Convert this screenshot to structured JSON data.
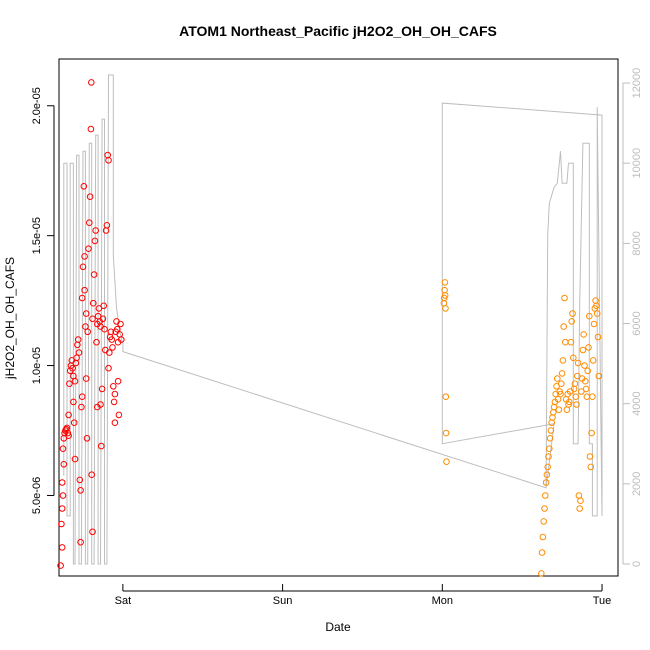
{
  "chart_data": {
    "type": "scatter",
    "title": "ATOM1 Northeast_Pacific jH2O2_OH_OH_CAFS",
    "xlabel": "Date",
    "ylabel": "jH2O2_OH_OH_CAFS",
    "x_ticks": [
      "Sat",
      "Sun",
      "Mon",
      "Tue"
    ],
    "x_range_days": [
      -0.4,
      3.1
    ],
    "y_ticks": [
      "5.0e-06",
      "1.0e-05",
      "1.5e-05",
      "2.0e-05"
    ],
    "y_tick_values": [
      5e-06,
      1e-05,
      1.5e-05,
      2e-05
    ],
    "ylim": [
      1.9e-06,
      2.18e-05
    ],
    "y2_ticks": [
      "0",
      "2000",
      "4000",
      "6000",
      "8000",
      "10000",
      "12000"
    ],
    "y2_tick_values": [
      0,
      2000,
      4000,
      6000,
      8000,
      10000,
      12000
    ],
    "y2lim": [
      -300,
      12600
    ],
    "colors": {
      "series_1": "#ff0000",
      "series_2": "#ff8c00",
      "altitude_line": "#bebebe"
    },
    "series": [
      {
        "axis": "left",
        "color": "#ff0000",
        "points": [
          [
            -0.39,
            2.3e-06
          ],
          [
            -0.38,
            3e-06
          ],
          [
            -0.385,
            3.9e-06
          ],
          [
            -0.38,
            4.5e-06
          ],
          [
            -0.375,
            5e-06
          ],
          [
            -0.38,
            5.5e-06
          ],
          [
            -0.37,
            6.2e-06
          ],
          [
            -0.375,
            6.8e-06
          ],
          [
            -0.37,
            7.2e-06
          ],
          [
            -0.365,
            7.4e-06
          ],
          [
            -0.36,
            7.5e-06
          ],
          [
            -0.355,
            7.55e-06
          ],
          [
            -0.35,
            7.6e-06
          ],
          [
            -0.345,
            7.4e-06
          ],
          [
            -0.34,
            7.3e-06
          ],
          [
            -0.34,
            8.1e-06
          ],
          [
            -0.335,
            9.3e-06
          ],
          [
            -0.33,
            9.8e-06
          ],
          [
            -0.325,
            1e-05
          ],
          [
            -0.32,
            1.02e-05
          ],
          [
            -0.315,
            9.9e-06
          ],
          [
            -0.31,
            9.6e-06
          ],
          [
            -0.31,
            8.6e-06
          ],
          [
            -0.305,
            7.8e-06
          ],
          [
            -0.3,
            6.4e-06
          ],
          [
            -0.3,
            9.4e-06
          ],
          [
            -0.295,
            1.01e-05
          ],
          [
            -0.29,
            1.03e-05
          ],
          [
            -0.285,
            1.08e-05
          ],
          [
            -0.28,
            1.1e-05
          ],
          [
            -0.275,
            1.05e-05
          ],
          [
            -0.27,
            5.6e-06
          ],
          [
            -0.265,
            3.2e-06
          ],
          [
            -0.265,
            5.2e-06
          ],
          [
            -0.26,
            8.4e-06
          ],
          [
            -0.255,
            8.8e-06
          ],
          [
            -0.255,
            1.26e-05
          ],
          [
            -0.25,
            1.38e-05
          ],
          [
            -0.245,
            1.69e-05
          ],
          [
            -0.24,
            1.42e-05
          ],
          [
            -0.24,
            1.29e-05
          ],
          [
            -0.235,
            1.15e-05
          ],
          [
            -0.23,
            1.2e-05
          ],
          [
            -0.23,
            9.5e-06
          ],
          [
            -0.225,
            7.2e-06
          ],
          [
            -0.22,
            1.13e-05
          ],
          [
            -0.215,
            1.45e-05
          ],
          [
            -0.21,
            1.55e-05
          ],
          [
            -0.205,
            1.65e-05
          ],
          [
            -0.2,
            1.91e-05
          ],
          [
            -0.198,
            2.09e-05
          ],
          [
            -0.195,
            5.8e-06
          ],
          [
            -0.19,
            3.6e-06
          ],
          [
            -0.19,
            1.18e-05
          ],
          [
            -0.185,
            1.24e-05
          ],
          [
            -0.18,
            1.35e-05
          ],
          [
            -0.175,
            1.48e-05
          ],
          [
            -0.17,
            1.52e-05
          ],
          [
            -0.165,
            1.09e-05
          ],
          [
            -0.16,
            8.4e-06
          ],
          [
            -0.16,
            1.16e-05
          ],
          [
            -0.155,
            1.19e-05
          ],
          [
            -0.15,
            1.22e-05
          ],
          [
            -0.145,
            1.17e-05
          ],
          [
            -0.14,
            1.15e-05
          ],
          [
            -0.14,
            8.5e-06
          ],
          [
            -0.135,
            6.9e-06
          ],
          [
            -0.13,
            9.1e-06
          ],
          [
            -0.125,
            1.18e-05
          ],
          [
            -0.12,
            1.23e-05
          ],
          [
            -0.115,
            1.14e-05
          ],
          [
            -0.11,
            1.06e-05
          ],
          [
            -0.105,
            1.52e-05
          ],
          [
            -0.1,
            1.54e-05
          ],
          [
            -0.095,
            1.81e-05
          ],
          [
            -0.09,
            1.79e-05
          ],
          [
            -0.09,
            9.9e-06
          ],
          [
            -0.085,
            1.05e-05
          ],
          [
            -0.08,
            1.11e-05
          ],
          [
            -0.075,
            1.13e-05
          ],
          [
            -0.07,
            1.1e-05
          ],
          [
            -0.065,
            1.07e-05
          ],
          [
            -0.06,
            9.2e-06
          ],
          [
            -0.055,
            8.6e-06
          ],
          [
            -0.05,
            8.9e-06
          ],
          [
            -0.05,
            7.8e-06
          ],
          [
            -0.045,
            1.13e-05
          ],
          [
            -0.04,
            1.17e-05
          ],
          [
            -0.035,
            1.14e-05
          ],
          [
            -0.03,
            1.09e-05
          ],
          [
            -0.03,
            9.4e-06
          ],
          [
            -0.025,
            8.1e-06
          ],
          [
            -0.02,
            1.12e-05
          ],
          [
            -0.015,
            1.16e-05
          ],
          [
            -0.01,
            1.1e-05
          ]
        ]
      },
      {
        "axis": "left",
        "color": "#ff8c00",
        "points": [
          [
            2.01,
            1.24e-05
          ],
          [
            2.012,
            1.26e-05
          ],
          [
            2.014,
            1.29e-05
          ],
          [
            2.016,
            1.32e-05
          ],
          [
            2.018,
            1.27e-05
          ],
          [
            2.02,
            1.22e-05
          ],
          [
            2.022,
            8.8e-06
          ],
          [
            2.024,
            7.4e-06
          ],
          [
            2.026,
            6.3e-06
          ],
          [
            2.62,
            2e-06
          ],
          [
            2.625,
            2.8e-06
          ],
          [
            2.63,
            3.4e-06
          ],
          [
            2.635,
            4e-06
          ],
          [
            2.64,
            4.5e-06
          ],
          [
            2.645,
            5e-06
          ],
          [
            2.65,
            5.5e-06
          ],
          [
            2.655,
            5.8e-06
          ],
          [
            2.66,
            6.1e-06
          ],
          [
            2.665,
            6.5e-06
          ],
          [
            2.67,
            6.8e-06
          ],
          [
            2.675,
            7.2e-06
          ],
          [
            2.68,
            7.5e-06
          ],
          [
            2.685,
            7.8e-06
          ],
          [
            2.69,
            8e-06
          ],
          [
            2.695,
            8.2e-06
          ],
          [
            2.7,
            8.4e-06
          ],
          [
            2.705,
            8.6e-06
          ],
          [
            2.71,
            8.9e-06
          ],
          [
            2.715,
            9.2e-06
          ],
          [
            2.72,
            9.5e-06
          ],
          [
            2.725,
            8.7e-06
          ],
          [
            2.73,
            8.3e-06
          ],
          [
            2.735,
            9e-06
          ],
          [
            2.74,
            8.9e-06
          ],
          [
            2.745,
            9.3e-06
          ],
          [
            2.75,
            9.7e-06
          ],
          [
            2.755,
            1.02e-05
          ],
          [
            2.76,
            1.15e-05
          ],
          [
            2.765,
            1.26e-05
          ],
          [
            2.77,
            1.09e-05
          ],
          [
            2.775,
            8.7e-06
          ],
          [
            2.78,
            8.3e-06
          ],
          [
            2.785,
            8.9e-06
          ],
          [
            2.79,
            8.5e-06
          ],
          [
            2.795,
            8.6e-06
          ],
          [
            2.8,
            9e-06
          ],
          [
            2.805,
            1.09e-05
          ],
          [
            2.81,
            1.17e-05
          ],
          [
            2.815,
            1.2e-05
          ],
          [
            2.82,
            1.03e-05
          ],
          [
            2.825,
            9.1e-06
          ],
          [
            2.83,
            9.3e-06
          ],
          [
            2.835,
            8.8e-06
          ],
          [
            2.84,
            8.5e-06
          ],
          [
            2.845,
            9.6e-06
          ],
          [
            2.85,
            1.01e-05
          ],
          [
            2.855,
            5e-06
          ],
          [
            2.86,
            4.5e-06
          ],
          [
            2.865,
            4.8e-06
          ],
          [
            2.87,
            9e-06
          ],
          [
            2.875,
            9.5e-06
          ],
          [
            2.88,
            1.06e-05
          ],
          [
            2.885,
            1.12e-05
          ],
          [
            2.89,
            1e-05
          ],
          [
            2.895,
            9.4e-06
          ],
          [
            2.9,
            9.1e-06
          ],
          [
            2.905,
            8.8e-06
          ],
          [
            2.91,
            9.8e-06
          ],
          [
            2.915,
            1.07e-05
          ],
          [
            2.92,
            1.19e-05
          ],
          [
            2.925,
            6.5e-06
          ],
          [
            2.93,
            6.1e-06
          ],
          [
            2.935,
            7.4e-06
          ],
          [
            2.94,
            8.8e-06
          ],
          [
            2.945,
            1.02e-05
          ],
          [
            2.95,
            1.16e-05
          ],
          [
            2.955,
            1.22e-05
          ],
          [
            2.96,
            1.25e-05
          ],
          [
            2.965,
            1.23e-05
          ],
          [
            2.97,
            1.2e-05
          ],
          [
            2.975,
            1.11e-05
          ],
          [
            2.98,
            9.6e-06
          ]
        ]
      }
    ],
    "altitude_line": {
      "axis": "right",
      "color": "#bebebe",
      "points": [
        [
          -0.37,
          2200
        ],
        [
          -0.37,
          10000
        ],
        [
          -0.35,
          10000
        ],
        [
          -0.35,
          1200
        ],
        [
          -0.33,
          1200
        ],
        [
          -0.33,
          10000
        ],
        [
          -0.31,
          10000
        ],
        [
          -0.31,
          0
        ],
        [
          -0.3,
          0
        ],
        [
          -0.29,
          10200
        ],
        [
          -0.275,
          10200
        ],
        [
          -0.275,
          0
        ],
        [
          -0.26,
          0
        ],
        [
          -0.25,
          10300
        ],
        [
          -0.235,
          10300
        ],
        [
          -0.235,
          0
        ],
        [
          -0.22,
          0
        ],
        [
          -0.21,
          10500
        ],
        [
          -0.195,
          10500
        ],
        [
          -0.195,
          0
        ],
        [
          -0.18,
          0
        ],
        [
          -0.17,
          10700
        ],
        [
          -0.155,
          10700
        ],
        [
          -0.155,
          0
        ],
        [
          -0.14,
          0
        ],
        [
          -0.13,
          11100
        ],
        [
          -0.115,
          11100
        ],
        [
          -0.115,
          0
        ],
        [
          -0.1,
          0
        ],
        [
          -0.09,
          12200
        ],
        [
          -0.07,
          12200
        ],
        [
          -0.06,
          12200
        ],
        [
          -0.06,
          7700
        ],
        [
          -0.04,
          6400
        ],
        [
          -0.02,
          5800
        ],
        [
          0.0,
          5500
        ],
        [
          0.0,
          5300
        ],
        [
          2.65,
          1900
        ],
        [
          2.7,
          3500
        ],
        [
          2.0,
          3000
        ],
        [
          2.0,
          11500
        ],
        [
          3.0,
          11200
        ],
        [
          3.0,
          1200
        ],
        [
          2.97,
          11400
        ],
        [
          2.97,
          1200
        ],
        [
          2.94,
          1200
        ],
        [
          2.94,
          3000
        ],
        [
          2.92,
          3000
        ],
        [
          2.92,
          10500
        ],
        [
          2.88,
          10500
        ],
        [
          2.86,
          6500
        ],
        [
          2.85,
          3000
        ],
        [
          2.82,
          3000
        ],
        [
          2.82,
          10000
        ],
        [
          2.79,
          10000
        ],
        [
          2.78,
          9500
        ],
        [
          2.75,
          9500
        ],
        [
          2.74,
          10300
        ],
        [
          2.72,
          9500
        ],
        [
          2.7,
          9400
        ],
        [
          2.67,
          9000
        ],
        [
          2.66,
          8200
        ],
        [
          2.65,
          1900
        ]
      ]
    }
  }
}
